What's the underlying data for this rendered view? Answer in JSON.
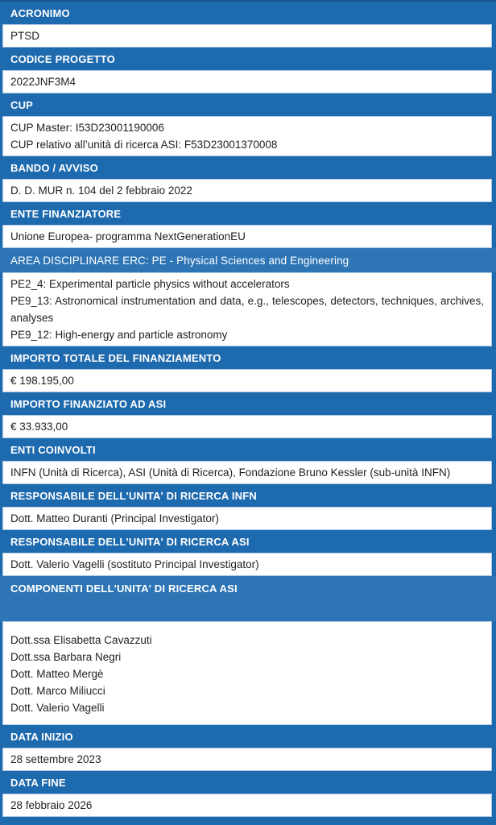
{
  "document": {
    "colors": {
      "header_blue": "#1E6AAE",
      "header_blue_light": "#2E75B6",
      "row_border_blue": "#A9C7E4",
      "header_text": "#FFFFFF",
      "value_text": "#1F1F1F"
    },
    "sections": [
      {
        "title": "ACRONIMO",
        "values": [
          "PTSD"
        ]
      },
      {
        "title": "CODICE PROGETTO",
        "values": [
          "2022JNF3M4"
        ]
      },
      {
        "title": "CUP",
        "values": [
          "CUP Master: I53D23001190006",
          "CUP relativo all’unità di ricerca ASI: F53D23001370008"
        ]
      },
      {
        "title": "BANDO / AVVISO",
        "values": [
          "D. D. MUR n. 104 del 2 febbraio 2022"
        ]
      },
      {
        "title": "ENTE FINANZIATORE",
        "values": [
          "Unione Europea- programma NextGenerationEU"
        ]
      },
      {
        "title": "AREA DISCIPLINARE ERC: PE - Physical Sciences and Engineering",
        "values": [
          "PE2_4: Experimental particle physics without accelerators",
          "PE9_13: Astronomical instrumentation and data, e.g., telescopes, detectors, techniques, archives, analyses",
          "PE9_12: High-energy and particle astronomy"
        ]
      },
      {
        "title": "IMPORTO TOTALE DEL FINANZIAMENTO",
        "values": [
          "€ 198.195,00"
        ]
      },
      {
        "title": "IMPORTO FINANZIATO AD ASI",
        "values": [
          "€ 33.933,00"
        ]
      },
      {
        "title": "ENTI COINVOLTI",
        "values": [
          "INFN (Unità di Ricerca), ASI (Unità di Ricerca), Fondazione Bruno Kessler (sub-unità INFN)"
        ]
      },
      {
        "title": "RESPONSABILE DELL'UNITA' DI RICERCA INFN",
        "values": [
          "Dott. Matteo Duranti (Principal Investigator)"
        ]
      },
      {
        "title": "RESPONSABILE DELL'UNITA' DI RICERCA ASI",
        "values": [
          "Dott. Valerio Vagelli (sostituto Principal Investigator)"
        ]
      },
      {
        "title": "COMPONENTI DELL'UNITA' DI RICERCA ASI",
        "values": [
          "Dott.ssa Elisabetta Cavazzuti",
          "Dott.ssa Barbara Negri",
          "Dott. Matteo Mergè",
          "Dott. Marco Miliucci",
          "Dott. Valerio Vagelli"
        ]
      },
      {
        "title": "DATA INIZIO",
        "values": [
          "28 settembre 2023"
        ]
      },
      {
        "title": "DATA FINE",
        "values": [
          "28 febbraio 2026"
        ]
      }
    ]
  }
}
